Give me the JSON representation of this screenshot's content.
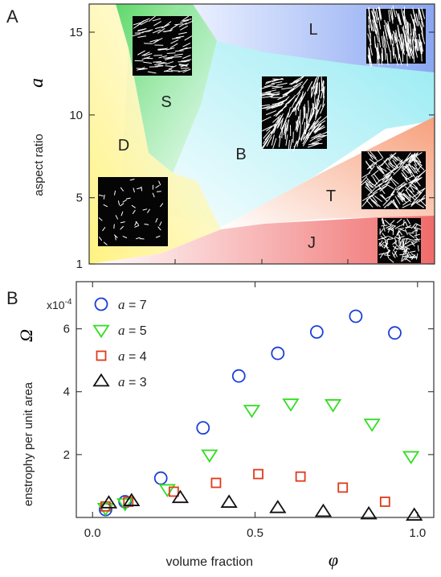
{
  "chart_data": [
    {
      "panel_label": "A",
      "type": "phase-diagram",
      "ylabel": "aspect ratio",
      "ylabel_symbol": "a",
      "yticks": [
        1,
        5,
        10,
        15
      ],
      "xlim": [
        0,
        1
      ],
      "ylim": [
        1,
        16.7
      ],
      "regions": [
        {
          "label": "D",
          "color": "#d8d22a"
        },
        {
          "label": "S",
          "color": "#1f6b1f"
        },
        {
          "label": "L",
          "color": "#1a2e8c"
        },
        {
          "label": "B",
          "color": "#2a8de0"
        },
        {
          "label": "T",
          "color": "#7a3a14"
        },
        {
          "label": "J",
          "color": "#cc2222"
        }
      ]
    },
    {
      "panel_label": "B",
      "type": "scatter",
      "xlabel": "volume fraction",
      "xlabel_symbol": "φ",
      "ylabel": "enstrophy per unit area",
      "ylabel_symbol": "Ω",
      "y_multiplier": "x10",
      "y_multiplier_exp": "-4",
      "xticks": [
        "0.0",
        "0.5",
        "1.0"
      ],
      "yticks": [
        2,
        4,
        6
      ],
      "xlim": [
        -0.05,
        1.05
      ],
      "ylim": [
        0,
        7.5
      ],
      "series": [
        {
          "name": "= 7",
          "symbol": "a",
          "marker": "circle",
          "color": "#1d3fd8",
          "x": [
            0.04,
            0.1,
            0.21,
            0.34,
            0.45,
            0.57,
            0.69,
            0.81,
            0.93
          ],
          "y": [
            0.25,
            0.5,
            1.25,
            2.85,
            4.5,
            5.22,
            5.9,
            6.4,
            5.87
          ]
        },
        {
          "name": "= 5",
          "symbol": "a",
          "marker": "triangle-down",
          "color": "#33dd22",
          "x": [
            0.04,
            0.1,
            0.23,
            0.36,
            0.49,
            0.61,
            0.74,
            0.86,
            0.98
          ],
          "y": [
            0.3,
            0.45,
            0.9,
            2.0,
            3.42,
            3.62,
            3.6,
            2.98,
            1.95
          ]
        },
        {
          "name": "= 4",
          "symbol": "a",
          "marker": "square",
          "color": "#e03a1a",
          "x": [
            0.04,
            0.11,
            0.25,
            0.38,
            0.51,
            0.64,
            0.77,
            0.9
          ],
          "y": [
            0.35,
            0.5,
            0.82,
            1.1,
            1.38,
            1.3,
            0.95,
            0.5
          ]
        },
        {
          "name": "= 3",
          "symbol": "a",
          "marker": "triangle-up",
          "color": "#111111",
          "x": [
            0.05,
            0.12,
            0.27,
            0.42,
            0.57,
            0.71,
            0.85,
            0.99
          ],
          "y": [
            0.45,
            0.52,
            0.62,
            0.47,
            0.3,
            0.18,
            0.1,
            0.06
          ]
        }
      ]
    }
  ]
}
